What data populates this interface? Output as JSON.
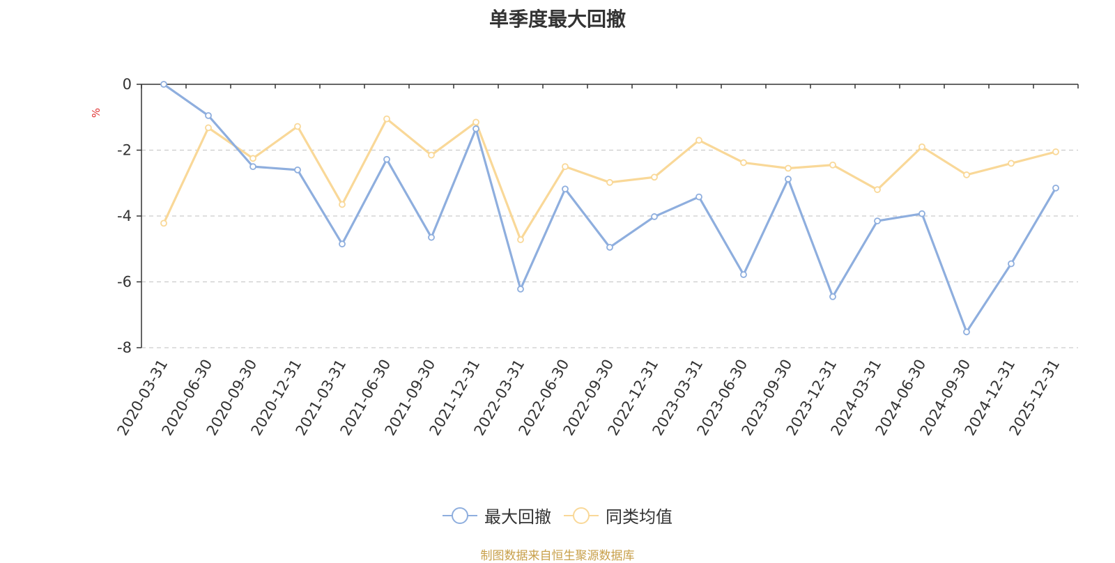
{
  "chart_data": {
    "type": "line",
    "title": "单季度最大回撤",
    "ylabel": "%",
    "ylim": [
      -8,
      0
    ],
    "yticks": [
      0,
      -2,
      -4,
      -6,
      -8
    ],
    "grid": true,
    "legend_position": "bottom-center",
    "categories": [
      "2020-03-31",
      "2020-06-30",
      "2020-09-30",
      "2020-12-31",
      "2021-03-31",
      "2021-06-30",
      "2021-09-30",
      "2021-12-31",
      "2022-03-31",
      "2022-06-30",
      "2022-09-30",
      "2022-12-31",
      "2023-03-31",
      "2023-06-30",
      "2023-09-30",
      "2023-12-31",
      "2024-03-31",
      "2024-06-30",
      "2024-09-30",
      "2024-12-31",
      "2025-12-31"
    ],
    "series": [
      {
        "name": "最大回撤",
        "color": "#8eaede",
        "values": [
          0,
          -0.95,
          -2.5,
          -2.6,
          -4.85,
          -2.28,
          -4.65,
          -1.35,
          -6.22,
          -3.18,
          -4.95,
          -4.02,
          -3.42,
          -5.78,
          -2.88,
          -6.45,
          -4.15,
          -3.93,
          -7.52,
          -5.45,
          -3.15
        ]
      },
      {
        "name": "同类均值",
        "color": "#f9d898",
        "values": [
          -4.22,
          -1.32,
          -2.25,
          -1.28,
          -3.65,
          -1.05,
          -2.15,
          -1.15,
          -4.72,
          -2.5,
          -2.98,
          -2.82,
          -1.7,
          -2.38,
          -2.55,
          -2.45,
          -3.2,
          -1.9,
          -2.75,
          -2.4,
          -2.05
        ]
      }
    ]
  },
  "source_text": "制图数据来自恒生聚源数据库"
}
